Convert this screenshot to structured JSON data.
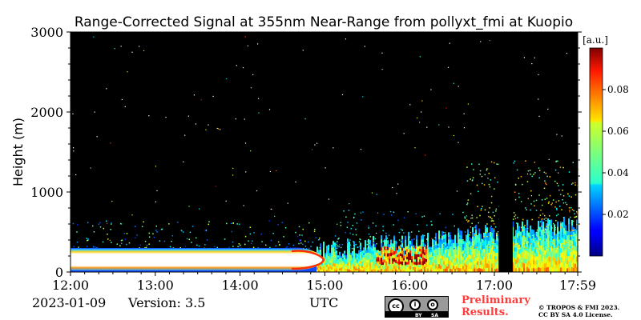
{
  "chart_data": {
    "type": "heatmap",
    "title": "Range-Corrected Signal at 355nm Near-Range from pollyxt_fmi at Kuopio",
    "xlabel": "UTC",
    "ylabel": "Height (m)",
    "x_ticks": [
      "12:00",
      "13:00",
      "14:00",
      "15:00",
      "16:00",
      "17:00",
      "17:59"
    ],
    "x_range_hours": [
      12.0,
      17.983
    ],
    "y_ticks": [
      0,
      1000,
      2000,
      3000
    ],
    "ylim": [
      0,
      3000
    ],
    "colorbar": {
      "unit_label": "[a.u.]",
      "ticks": [
        0.02,
        0.04,
        0.06,
        0.08
      ],
      "range": [
        0.0,
        0.1
      ],
      "colormap": "jet"
    },
    "features": [
      {
        "name": "strong near-surface aerosol/fog layer",
        "time_start": "12:00",
        "time_end": "14:58",
        "top_m": 300
      },
      {
        "name": "no data gap",
        "time_start": "17:03",
        "time_end": "17:13"
      },
      {
        "name": "sparse elevated aerosol",
        "time_start": "16:40",
        "time_end": "17:59",
        "top_m": 1400
      }
    ]
  },
  "footer": {
    "date": "2023-01-09",
    "version": "Version: 3.5",
    "xlabel": "UTC",
    "preliminary_line1": "Preliminary",
    "preliminary_line2": "Results.",
    "copyright_line1": "© TROPOS & FMI 2023.",
    "copyright_line2": "CC BY SA 4.0 License.",
    "license_badge_by": "BY",
    "license_badge_sa": "SA"
  }
}
